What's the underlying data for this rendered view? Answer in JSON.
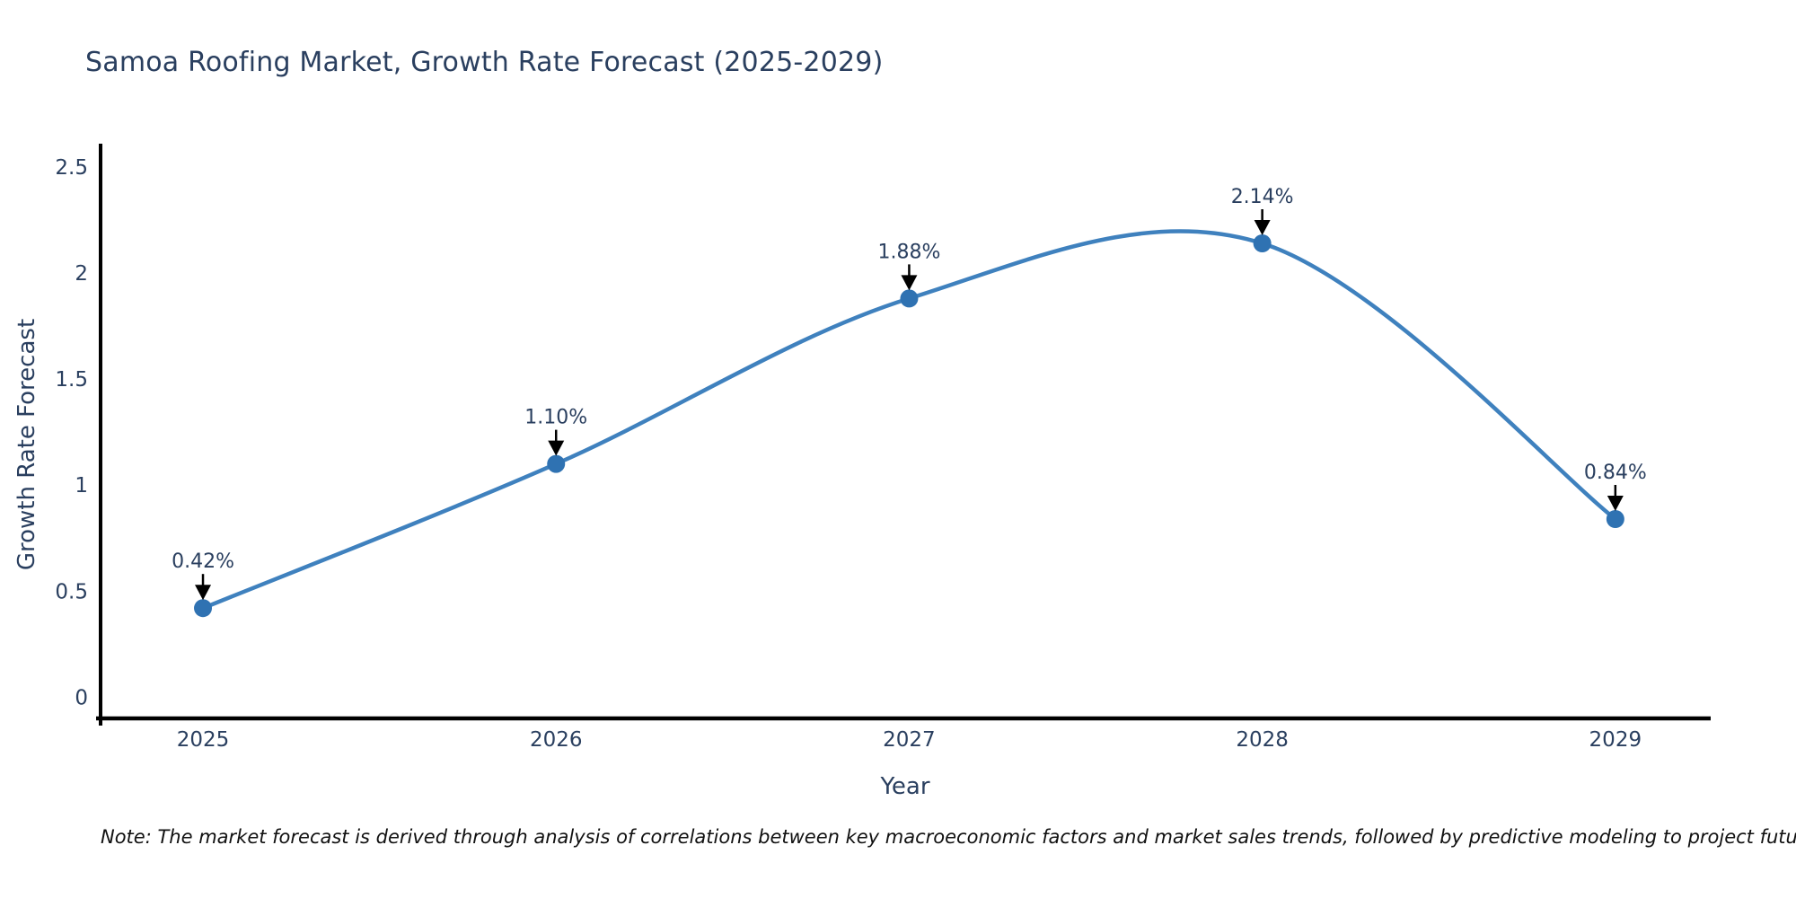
{
  "page": {
    "title": "Samoa Roofing Market, Growth Rate Forecast (2025-2029)",
    "note": "Note: The market forecast is derived through analysis of correlations between key macroeconomic factors and market sales trends, followed by predictive modeling to project future sales"
  },
  "chart_data": {
    "type": "line",
    "title": "Samoa Roofing Market, Growth Rate Forecast (2025-2029)",
    "xlabel": "Year",
    "ylabel": "Growth Rate Forecast",
    "line_shape": "spline",
    "grid": false,
    "legend_position": "none",
    "x": [
      2025,
      2026,
      2027,
      2028,
      2029
    ],
    "xtick_labels": [
      "2025",
      "2026",
      "2027",
      "2028",
      "2029"
    ],
    "series": [
      {
        "name": "Growth Rate Forecast",
        "values": [
          0.42,
          1.1,
          1.88,
          2.14,
          0.84
        ]
      }
    ],
    "point_labels": [
      "0.42%",
      "1.10%",
      "1.88%",
      "2.14%",
      "0.84%"
    ],
    "yticks": [
      0,
      0.5,
      1,
      1.5,
      2,
      2.5
    ],
    "ytick_labels": [
      "0",
      "0.5",
      "1",
      "1.5",
      "2",
      "2.5"
    ],
    "xlim": [
      2024.71,
      2029.27
    ],
    "ylim": [
      -0.1,
      2.61
    ],
    "colors": {
      "line": "#3f81be",
      "marker": "#2f72b2",
      "axis": "#000000",
      "arrow": "#000000",
      "text": "#2a3f5f",
      "note_text": "#111111",
      "background": "#ffffff"
    }
  }
}
